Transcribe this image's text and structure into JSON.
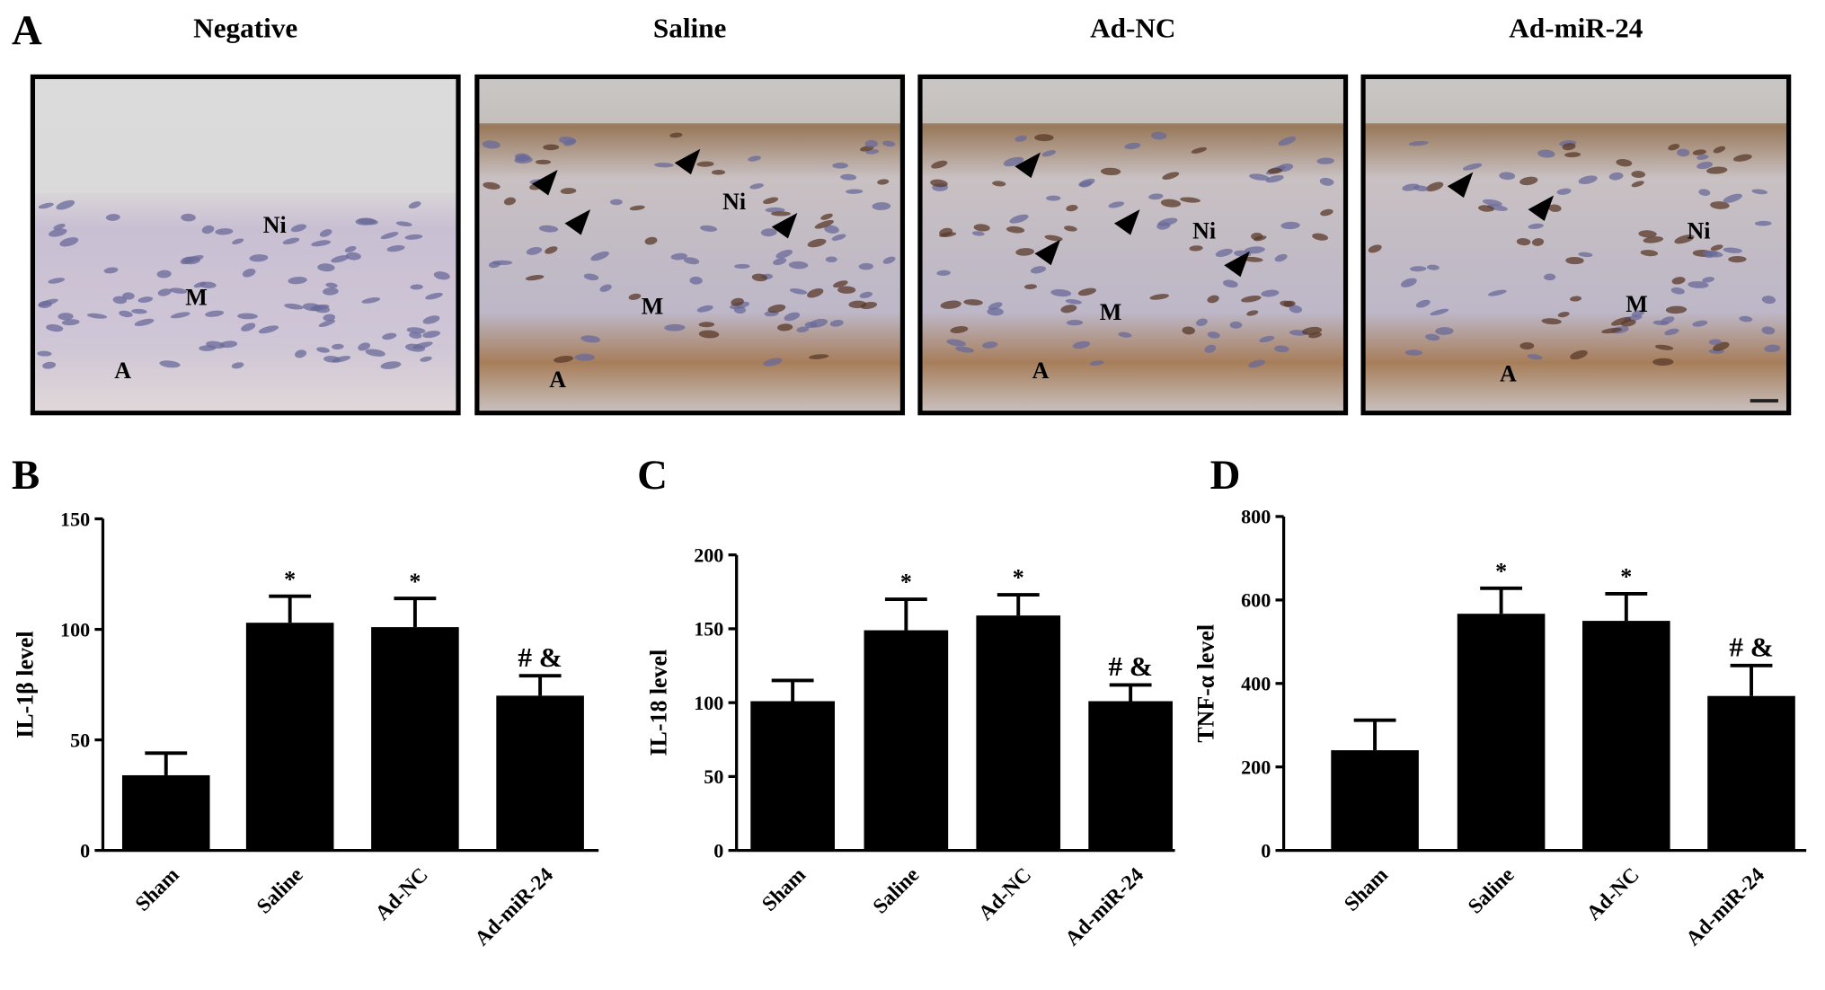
{
  "panel_a": {
    "label": "A",
    "images": [
      {
        "title": "Negative",
        "labels": [
          "Ni",
          "M",
          "A"
        ]
      },
      {
        "title": "Saline",
        "labels": [
          "Ni",
          "M",
          "A"
        ]
      },
      {
        "title": "Ad-NC",
        "labels": [
          "Ni",
          "M",
          "A"
        ]
      },
      {
        "title": "Ad-miR-24",
        "labels": [
          "Ni",
          "M",
          "A"
        ]
      }
    ]
  },
  "chart_data": [
    {
      "type": "bar",
      "label": "B",
      "y_label": "IL-1β level",
      "categories": [
        "Sham",
        "Saline",
        "Ad-NC",
        "Ad-miR-24"
      ],
      "values": [
        34,
        103,
        101,
        70
      ],
      "errors": [
        10,
        12,
        13,
        9
      ],
      "annotations": [
        null,
        "*",
        "*",
        "# &"
      ],
      "color": "#000000",
      "ylim": [
        0,
        150
      ],
      "yticks": [
        0,
        50,
        100,
        150
      ]
    },
    {
      "type": "bar",
      "label": "C",
      "y_label": "IL-18 level",
      "categories": [
        "Sham",
        "Saline",
        "Ad-NC",
        "Ad-miR-24"
      ],
      "values": [
        101,
        149,
        159,
        101
      ],
      "errors": [
        14,
        21,
        14,
        11
      ],
      "annotations": [
        null,
        "*",
        "*",
        "# &"
      ],
      "color": "#000000",
      "ylim": [
        0,
        200
      ],
      "yticks": [
        0,
        50,
        100,
        150,
        200
      ]
    },
    {
      "type": "bar",
      "label": "D",
      "y_label": "TNF-α level",
      "categories": [
        "Sham",
        "Saline",
        "Ad-NC",
        "Ad-miR-24"
      ],
      "values": [
        240,
        567,
        550,
        370
      ],
      "errors": [
        72,
        61,
        65,
        73
      ],
      "annotations": [
        null,
        "*",
        "*",
        "# &"
      ],
      "color": "#000000",
      "ylim": [
        0,
        800
      ],
      "yticks": [
        0,
        200,
        400,
        600,
        800
      ]
    }
  ]
}
